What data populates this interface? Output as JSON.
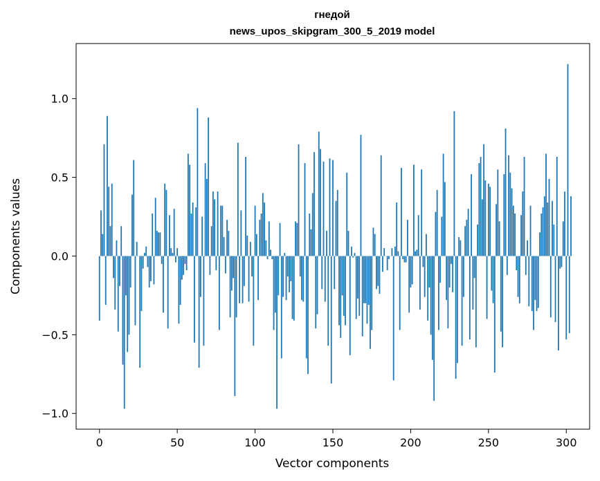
{
  "chart_data": {
    "type": "bar",
    "title": "гнедой",
    "subtitle": "news_upos_skipgram_300_5_2019 model",
    "xlabel": "Vector components",
    "ylabel": "Components values",
    "xlim": [
      -15,
      315
    ],
    "ylim": [
      -1.1,
      1.35
    ],
    "xticks": [
      0,
      50,
      100,
      150,
      200,
      250,
      300
    ],
    "xtick_labels": [
      "0",
      "50",
      "100",
      "150",
      "200",
      "250",
      "300"
    ],
    "yticks": [
      -1.0,
      -0.5,
      0.0,
      0.5,
      1.0
    ],
    "ytick_labels": [
      "−1.0",
      "−0.5",
      "0.0",
      "0.5",
      "1.0"
    ],
    "bar_color": "#1f77b4",
    "grid": false,
    "values": [
      -0.41,
      0.29,
      0.14,
      0.71,
      -0.31,
      0.89,
      0.44,
      0.19,
      0.46,
      -0.14,
      -0.34,
      0.1,
      -0.48,
      -0.19,
      0.19,
      -0.69,
      -0.97,
      -0.25,
      -0.61,
      -0.5,
      -0.2,
      0.39,
      0.61,
      -0.44,
      0.09,
      0.0,
      -0.71,
      -0.35,
      -0.08,
      0.02,
      0.06,
      -0.07,
      -0.2,
      -0.16,
      0.27,
      -0.18,
      0.37,
      0.16,
      0.15,
      0.15,
      -0.05,
      -0.36,
      0.46,
      0.42,
      -0.46,
      0.26,
      0.05,
      0.02,
      0.3,
      -0.04,
      0.05,
      -0.43,
      -0.31,
      -0.15,
      -0.12,
      -0.05,
      -0.09,
      0.65,
      0.58,
      0.27,
      0.34,
      -0.55,
      0.31,
      0.94,
      -0.71,
      -0.26,
      0.25,
      -0.57,
      0.59,
      0.49,
      0.88,
      -0.12,
      0.19,
      0.41,
      0.36,
      -0.09,
      0.41,
      -0.47,
      0.32,
      0.32,
      0.12,
      -0.11,
      0.23,
      0.16,
      -0.39,
      -0.22,
      -0.14,
      -0.89,
      -0.39,
      0.72,
      -0.3,
      0.29,
      -0.3,
      -0.19,
      0.63,
      0.13,
      -0.29,
      0.09,
      -0.13,
      -0.57,
      0.32,
      0.14,
      -0.28,
      0.23,
      0.27,
      0.4,
      0.34,
      0.1,
      -0.02,
      0.22,
      0.04,
      -0.02,
      -0.47,
      -0.36,
      -0.97,
      -0.25,
      0.21,
      -0.65,
      -0.26,
      0.02,
      -0.28,
      -0.13,
      -0.23,
      -0.16,
      -0.4,
      -0.41,
      0.22,
      0.21,
      0.71,
      -0.13,
      -0.28,
      -0.29,
      0.59,
      -0.65,
      -0.75,
      0.27,
      0.17,
      0.4,
      0.66,
      -0.46,
      -0.37,
      0.79,
      0.68,
      -0.21,
      0.6,
      -0.29,
      0.16,
      -0.57,
      0.62,
      -0.81,
      0.61,
      -0.21,
      0.35,
      0.42,
      -0.44,
      -0.52,
      -0.25,
      -0.38,
      -0.44,
      0.53,
      0.16,
      -0.63,
      0.06,
      -0.01,
      0.02,
      -0.4,
      -0.27,
      -0.38,
      0.77,
      -0.51,
      -0.3,
      -0.3,
      -0.43,
      -0.31,
      -0.59,
      -0.47,
      0.18,
      0.14,
      -0.21,
      -0.19,
      -0.24,
      0.64,
      -0.1,
      0.05,
      0.0,
      -0.09,
      -0.02,
      0.0,
      0.05,
      -0.79,
      0.06,
      0.34,
      0.03,
      -0.47,
      0.56,
      -0.02,
      -0.04,
      -0.04,
      0.23,
      -0.36,
      -0.2,
      -0.18,
      0.58,
      0.03,
      0.04,
      0.26,
      -0.34,
      0.55,
      -0.07,
      -0.26,
      0.14,
      -0.41,
      -0.2,
      -0.5,
      -0.66,
      -0.92,
      0.28,
      0.42,
      -0.47,
      -0.17,
      0.25,
      0.65,
      0.47,
      -0.28,
      -0.46,
      -0.2,
      -0.05,
      -0.23,
      0.92,
      -0.78,
      -0.68,
      0.12,
      0.1,
      -0.57,
      -0.26,
      0.19,
      0.23,
      0.3,
      -0.53,
      0.52,
      -0.34,
      -0.14,
      -0.58,
      0.2,
      0.59,
      0.63,
      0.36,
      0.71,
      0.48,
      -0.4,
      0.46,
      0.44,
      -0.22,
      -0.3,
      -0.74,
      0.33,
      0.55,
      0.22,
      -0.48,
      -0.58,
      0.52,
      0.81,
      -0.12,
      0.64,
      0.53,
      0.43,
      0.32,
      0.27,
      -0.09,
      -0.26,
      -0.3,
      0.26,
      0.41,
      0.63,
      -0.12,
      0.1,
      -0.32,
      0.32,
      -0.35,
      -0.47,
      -0.28,
      -0.35,
      -0.33,
      0.15,
      0.27,
      0.31,
      0.38,
      0.65,
      0.34,
      0.49,
      -0.39,
      0.35,
      0.2,
      -0.42,
      0.63,
      -0.6,
      -0.08,
      -0.07,
      0.22,
      0.41,
      -0.53,
      1.22,
      -0.49,
      0.38
    ]
  }
}
